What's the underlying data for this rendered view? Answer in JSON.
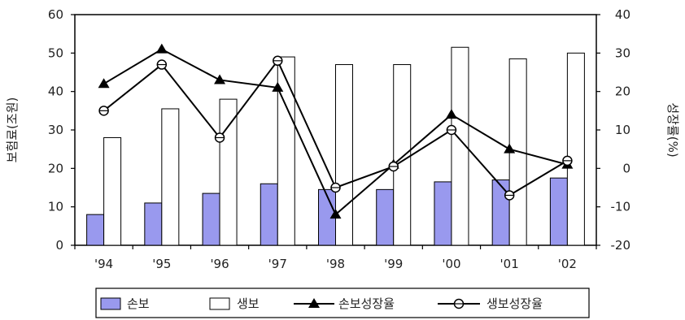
{
  "chart_data": {
    "type": "bar",
    "title": "",
    "categories": [
      "'94",
      "'95",
      "'96",
      "'97",
      "'98",
      "'99",
      "'00",
      "'01",
      "'02"
    ],
    "ylabel": "보험료(조원)",
    "y2label": "성장률(%)",
    "ylim": [
      0,
      60
    ],
    "y2lim": [
      -20,
      40
    ],
    "yticks": [
      "0",
      "10",
      "20",
      "30",
      "40",
      "50",
      "60"
    ],
    "y2ticks": [
      "-20",
      "-10",
      "0",
      "10",
      "20",
      "30",
      "40"
    ],
    "grid": false,
    "legend_position": "bottom",
    "series": [
      {
        "name": "손보",
        "kind": "bar",
        "axis": "left",
        "color": "#9999ee",
        "values": [
          8,
          11,
          13.5,
          16,
          14.5,
          14.5,
          16.5,
          17,
          17.5
        ]
      },
      {
        "name": "생보",
        "kind": "bar",
        "axis": "left",
        "color": "#ffffff",
        "values": [
          28,
          35.5,
          38,
          49,
          47,
          47,
          51.5,
          48.5,
          50
        ]
      },
      {
        "name": "손보성장율",
        "kind": "line",
        "marker": "triangle",
        "axis": "right",
        "color": "#000000",
        "values": [
          22,
          31,
          23,
          21,
          -12,
          1,
          14,
          5,
          1
        ]
      },
      {
        "name": "생보성장율",
        "kind": "line",
        "marker": "circle",
        "axis": "right",
        "color": "#000000",
        "values": [
          15,
          27,
          8,
          28,
          -5,
          0.5,
          10,
          -7,
          2
        ]
      }
    ]
  }
}
